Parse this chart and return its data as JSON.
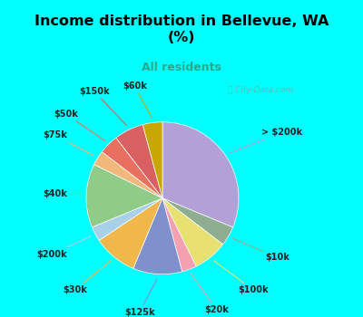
{
  "title": "Income distribution in Bellevue, WA\n(%)",
  "subtitle": "All residents",
  "title_color": "#000000",
  "subtitle_color": "#29a98b",
  "background_top": "#00ffff",
  "background_chart_color": "#d4ede0",
  "watermark": "City-Data.com",
  "labels": [
    "> $200k",
    "$10k",
    "$100k",
    "$20k",
    "$125k",
    "$30k",
    "$200k",
    "$40k",
    "$75k",
    "$50k",
    "$150k",
    "$60k"
  ],
  "values": [
    30,
    4,
    7,
    3,
    10,
    9,
    3,
    13,
    3,
    4,
    6,
    4
  ],
  "colors": [
    "#b3a0d6",
    "#8fad91",
    "#e8e070",
    "#f4a0b0",
    "#8090cc",
    "#f0b84a",
    "#a8d0e8",
    "#90cc88",
    "#f0b87a",
    "#e87060",
    "#d96060",
    "#c8a800"
  ],
  "startangle": 90,
  "label_fontsize": 7.0,
  "label_color": "#222222"
}
